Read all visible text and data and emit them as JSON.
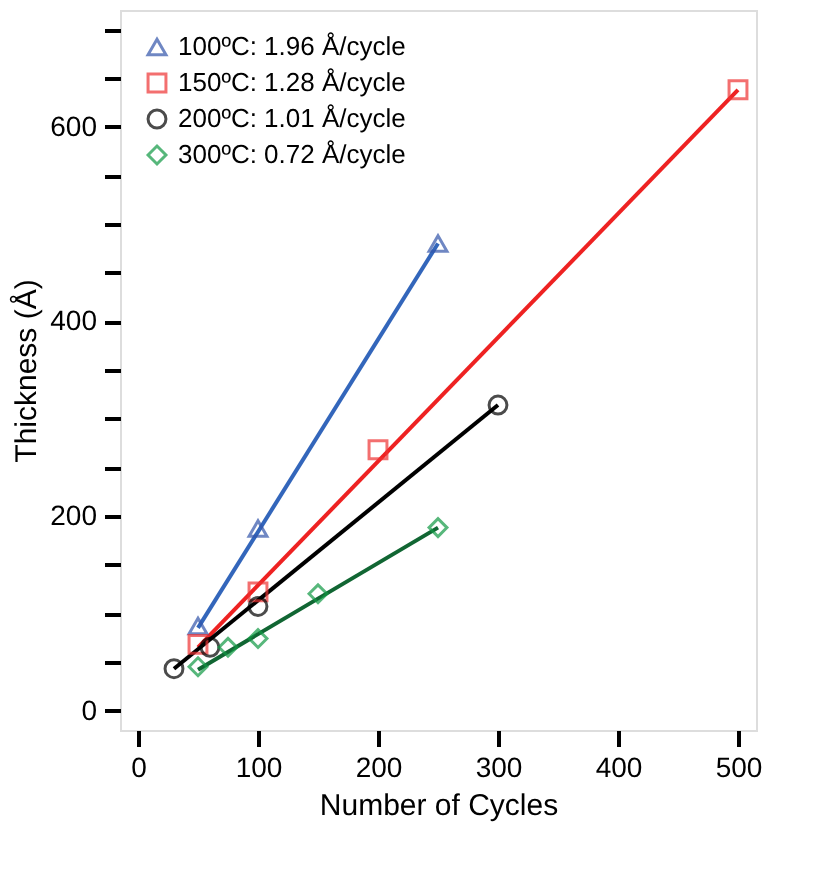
{
  "chart_data": {
    "type": "scatter",
    "xlabel": "Number of Cycles",
    "ylabel": "Thickness (Å)",
    "xlim": [
      -15,
      515
    ],
    "ylim": [
      -20,
      720
    ],
    "xticks": [
      0,
      100,
      200,
      300,
      400,
      500
    ],
    "yticks": [
      0,
      {
        "value": 50,
        "label": null
      },
      {
        "value": 100,
        "label": null
      },
      {
        "value": 150,
        "label": null
      },
      200,
      {
        "value": 250,
        "label": null
      },
      {
        "value": 300,
        "label": null
      },
      {
        "value": 350,
        "label": null
      },
      400,
      {
        "value": 450,
        "label": null
      },
      {
        "value": 500,
        "label": null
      },
      {
        "value": 550,
        "label": null
      },
      600,
      {
        "value": 650,
        "label": null
      },
      {
        "value": 700,
        "label": null
      }
    ],
    "grid": false,
    "legend": "top left",
    "series": [
      {
        "name": "100ºC: 1.96 Å/cycle",
        "color": "#3355aa",
        "marker": "triangle",
        "x": [
          50,
          100,
          250
        ],
        "values": [
          87,
          187,
          480
        ]
      },
      {
        "name": "150ºC: 1.28 Å/cycle",
        "color": "#ee3333",
        "marker": "square",
        "x": [
          50,
          100,
          200,
          500
        ],
        "values": [
          68,
          122,
          268,
          638
        ]
      },
      {
        "name": "200ºC: 1.01 Å/cycle",
        "color": "#000000",
        "marker": "circle",
        "x": [
          30,
          60,
          100,
          300
        ],
        "values": [
          43,
          65,
          107,
          314
        ]
      },
      {
        "name": "300ºC: 0.72 Å/cycle",
        "color": "#119944",
        "marker": "diamond",
        "x": [
          50,
          75,
          100,
          150,
          250
        ],
        "values": [
          45,
          65,
          74,
          120,
          188
        ]
      },
      {
        "type": "line",
        "color": "#3366bb",
        "x": [
          50,
          250
        ],
        "values": [
          85,
          480
        ]
      },
      {
        "type": "line",
        "color": "#ee2222",
        "x": [
          50,
          500
        ],
        "values": [
          65,
          638
        ]
      },
      {
        "type": "line",
        "color": "#000000",
        "x": [
          30,
          300
        ],
        "values": [
          43,
          314
        ]
      },
      {
        "type": "line",
        "color": "#116633",
        "x": [
          50,
          250
        ],
        "values": [
          42,
          188
        ]
      }
    ]
  }
}
